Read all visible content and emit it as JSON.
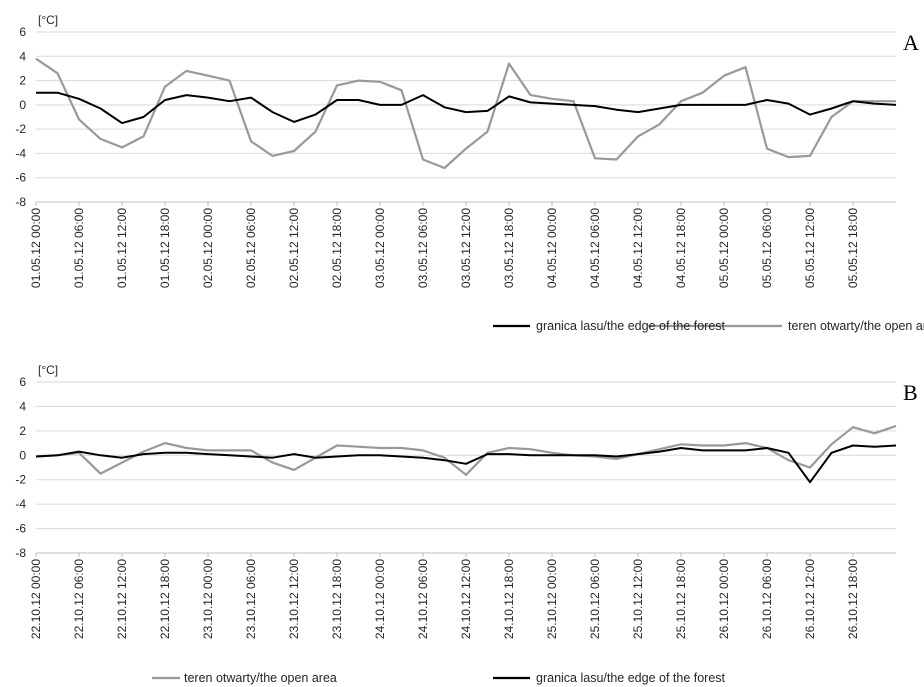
{
  "chart_data": [
    {
      "type": "line",
      "panel_label": "A",
      "unit_label": "[°C]",
      "ylim": [
        -8,
        6
      ],
      "yticks": [
        -8,
        -6,
        -4,
        -2,
        0,
        2,
        4,
        6
      ],
      "grid": "horizontal",
      "legend_position": "bottom",
      "x": [
        "01.05.12 00:00",
        "01.05.12 03:00",
        "01.05.12 06:00",
        "01.05.12 09:00",
        "01.05.12 12:00",
        "01.05.12 15:00",
        "01.05.12 18:00",
        "01.05.12 21:00",
        "02.05.12 00:00",
        "02.05.12 03:00",
        "02.05.12 06:00",
        "02.05.12 09:00",
        "02.05.12 12:00",
        "02.05.12 15:00",
        "02.05.12 18:00",
        "02.05.12 21:00",
        "03.05.12 00:00",
        "03.05.12 03:00",
        "03.05.12 06:00",
        "03.05.12 09:00",
        "03.05.12 12:00",
        "03.05.12 15:00",
        "03.05.12 18:00",
        "03.05.12 21:00",
        "04.05.12 00:00",
        "04.05.12 03:00",
        "04.05.12 06:00",
        "04.05.12 09:00",
        "04.05.12 12:00",
        "04.05.12 15:00",
        "04.05.12 18:00",
        "04.05.12 21:00",
        "05.05.12 00:00",
        "05.05.12 03:00",
        "05.05.12 06:00",
        "05.05.12 09:00",
        "05.05.12 12:00",
        "05.05.12 15:00",
        "05.05.12 18:00",
        "05.05.12 21:00",
        "06.05.12 00:00"
      ],
      "x_ticks": [
        "01.05.12 00:00",
        "01.05.12 06:00",
        "01.05.12 12:00",
        "01.05.12 18:00",
        "02.05.12 00:00",
        "02.05.12 06:00",
        "02.05.12 12:00",
        "02.05.12 18:00",
        "03.05.12 00:00",
        "03.05.12 06:00",
        "03.05.12 12:00",
        "03.05.12 18:00",
        "04.05.12 00:00",
        "04.05.12 06:00",
        "04.05.12 12:00",
        "04.05.12 18:00",
        "05.05.12 00:00",
        "05.05.12 06:00",
        "05.05.12 12:00",
        "05.05.12 18:00"
      ],
      "series": [
        {
          "name": "teren otwarty/the open area",
          "color": "#999999",
          "values": [
            3.8,
            2.6,
            -1.2,
            -2.8,
            -3.5,
            -2.6,
            1.5,
            2.8,
            2.4,
            2.0,
            -3.0,
            -4.2,
            -3.8,
            -2.2,
            1.6,
            2.0,
            1.9,
            1.2,
            -4.5,
            -5.2,
            -3.6,
            -2.2,
            3.4,
            0.8,
            0.5,
            0.3,
            -4.4,
            -4.5,
            -2.6,
            -1.6,
            0.3,
            1.0,
            2.4,
            3.1,
            -3.6,
            -4.3,
            -4.2,
            -1.0,
            0.3,
            0.3,
            0.3
          ]
        },
        {
          "name": "granica lasu/the edge of the forest",
          "color": "#000000",
          "values": [
            1.0,
            1.0,
            0.5,
            -0.3,
            -1.5,
            -1.0,
            0.4,
            0.8,
            0.6,
            0.3,
            0.6,
            -0.6,
            -1.4,
            -0.8,
            0.4,
            0.4,
            0.0,
            0.0,
            0.8,
            -0.2,
            -0.6,
            -0.5,
            0.7,
            0.2,
            0.1,
            0.0,
            -0.1,
            -0.4,
            -0.6,
            -0.3,
            0.0,
            0.0,
            0.0,
            0.0,
            0.4,
            0.1,
            -0.8,
            -0.3,
            0.3,
            0.1,
            0.0
          ]
        }
      ],
      "legend": [
        "teren otwarty/the open area",
        "granica lasu/the edge of the forest"
      ]
    },
    {
      "type": "line",
      "panel_label": "B",
      "unit_label": "[°C]",
      "ylim": [
        -8,
        6
      ],
      "yticks": [
        -8,
        -6,
        -4,
        -2,
        0,
        2,
        4,
        6
      ],
      "grid": "horizontal",
      "legend_position": "bottom",
      "x": [
        "22.10.12 00:00",
        "22.10.12 03:00",
        "22.10.12 06:00",
        "22.10.12 09:00",
        "22.10.12 12:00",
        "22.10.12 15:00",
        "22.10.12 18:00",
        "22.10.12 21:00",
        "23.10.12 00:00",
        "23.10.12 03:00",
        "23.10.12 06:00",
        "23.10.12 09:00",
        "23.10.12 12:00",
        "23.10.12 15:00",
        "23.10.12 18:00",
        "23.10.12 21:00",
        "24.10.12 00:00",
        "24.10.12 03:00",
        "24.10.12 06:00",
        "24.10.12 09:00",
        "24.10.12 12:00",
        "24.10.12 15:00",
        "24.10.12 18:00",
        "24.10.12 21:00",
        "25.10.12 00:00",
        "25.10.12 03:00",
        "25.10.12 06:00",
        "25.10.12 09:00",
        "25.10.12 12:00",
        "25.10.12 15:00",
        "25.10.12 18:00",
        "25.10.12 21:00",
        "26.10.12 00:00",
        "26.10.12 03:00",
        "26.10.12 06:00",
        "26.10.12 09:00",
        "26.10.12 12:00",
        "26.10.12 15:00",
        "26.10.12 18:00",
        "26.10.12 21:00",
        "27.10.12 00:00"
      ],
      "x_ticks": [
        "22.10.12 00:00",
        "22.10.12 06:00",
        "22.10.12 12:00",
        "22.10.12 18:00",
        "23.10.12 00:00",
        "23.10.12 06:00",
        "23.10.12 12:00",
        "23.10.12 18:00",
        "24.10.12 00:00",
        "24.10.12 06:00",
        "24.10.12 12:00",
        "24.10.12 18:00",
        "25.10.12 00:00",
        "25.10.12 06:00",
        "25.10.12 12:00",
        "25.10.12 18:00",
        "26.10.12 00:00",
        "26.10.12 06:00",
        "26.10.12 12:00",
        "26.10.12 18:00"
      ],
      "series": [
        {
          "name": "teren otwarty/the open area",
          "color": "#999999",
          "values": [
            -0.1,
            0.0,
            0.2,
            -1.5,
            -0.6,
            0.3,
            1.0,
            0.6,
            0.4,
            0.4,
            0.4,
            -0.6,
            -1.2,
            -0.2,
            0.8,
            0.7,
            0.6,
            0.6,
            0.4,
            -0.2,
            -1.6,
            0.2,
            0.6,
            0.5,
            0.2,
            0.0,
            -0.1,
            -0.3,
            0.1,
            0.5,
            0.9,
            0.8,
            0.8,
            1.0,
            0.6,
            -0.4,
            -1.0,
            0.9,
            2.3,
            1.8,
            2.4
          ]
        },
        {
          "name": "granica lasu/the edge of the forest",
          "color": "#000000",
          "values": [
            -0.1,
            0.0,
            0.3,
            0.0,
            -0.2,
            0.1,
            0.2,
            0.2,
            0.1,
            0.0,
            -0.1,
            -0.2,
            0.1,
            -0.2,
            -0.1,
            0.0,
            0.0,
            -0.1,
            -0.2,
            -0.4,
            -0.7,
            0.1,
            0.1,
            0.0,
            0.0,
            0.0,
            0.0,
            -0.1,
            0.1,
            0.3,
            0.6,
            0.4,
            0.4,
            0.4,
            0.6,
            0.2,
            -2.2,
            0.2,
            0.8,
            0.7,
            0.8
          ]
        }
      ],
      "legend": [
        "teren otwarty/the open area",
        "granica lasu/the edge of the forest"
      ]
    }
  ]
}
